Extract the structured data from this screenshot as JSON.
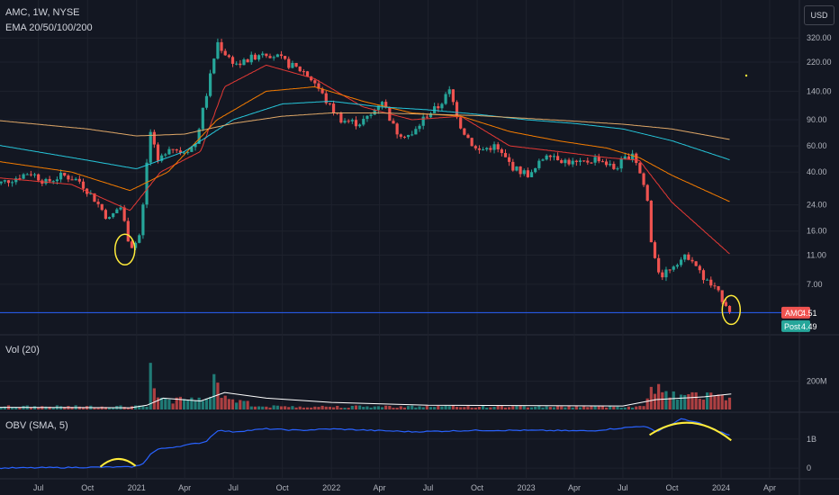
{
  "header": {
    "symbol": "AMC, 1W, NYSE",
    "indicator": "EMA 20/50/100/200",
    "currency": "USD"
  },
  "colors": {
    "background": "#131722",
    "grid": "#1e222d",
    "up": "#26a69a",
    "down": "#ef5350",
    "ema20": "#e53935",
    "ema50": "#f57c00",
    "ema100": "#26c6da",
    "ema200": "#e0a868",
    "vol_ma": "#ffffff",
    "obv": "#2962ff",
    "highlight": "#ffeb3b",
    "hline": "#2962ff"
  },
  "price_tags": [
    {
      "label": "AMC",
      "value": "4.51",
      "color": "#ef5350"
    },
    {
      "label": "Post",
      "value": "4.49",
      "color": "#26a69a"
    }
  ],
  "panes": {
    "volume_title": "Vol (20)",
    "obv_title": "OBV (SMA, 5)"
  },
  "chart_data": [
    {
      "type": "candlestick",
      "title": "AMC, 1W, NYSE",
      "scale": "log",
      "ylim": [
        5.0,
        330
      ],
      "y_ticks": [
        "320.00",
        "220.00",
        "140.00",
        "90.00",
        "60.00",
        "40.00",
        "24.00",
        "16.00",
        "11.00",
        "7.00"
      ],
      "y_tick_values": [
        320,
        220,
        140,
        90,
        60,
        40,
        24,
        16,
        11,
        7
      ],
      "x_ticks": [
        "Jul",
        "Oct",
        "2021",
        "Apr",
        "Jul",
        "Oct",
        "2022",
        "Apr",
        "Jul",
        "Oct",
        "2023",
        "Apr",
        "Jul",
        "Oct",
        "2024",
        "Apr"
      ],
      "x_tick_dates": [
        "2020-07-01",
        "2020-10-01",
        "2021-01-01",
        "2021-04-01",
        "2021-07-01",
        "2021-10-01",
        "2022-01-01",
        "2022-04-01",
        "2022-07-01",
        "2022-10-01",
        "2023-01-01",
        "2023-04-01",
        "2023-07-01",
        "2023-10-01",
        "2024-01-01",
        "2024-04-01"
      ],
      "close_path": [
        [
          "2020-04-01",
          32
        ],
        [
          "2020-05-15",
          36
        ],
        [
          "2020-06-15",
          40
        ],
        [
          "2020-07-15",
          34
        ],
        [
          "2020-08-15",
          38
        ],
        [
          "2020-09-15",
          35
        ],
        [
          "2020-10-15",
          26
        ],
        [
          "2020-11-10",
          19
        ],
        [
          "2020-12-01",
          24
        ],
        [
          "2020-12-20",
          12.5
        ],
        [
          "2021-01-05",
          14
        ],
        [
          "2021-01-15",
          27
        ],
        [
          "2021-01-25",
          80
        ],
        [
          "2021-02-10",
          45
        ],
        [
          "2021-03-01",
          60
        ],
        [
          "2021-03-25",
          55
        ],
        [
          "2021-04-20",
          60
        ],
        [
          "2021-05-15",
          150
        ],
        [
          "2021-06-01",
          300
        ],
        [
          "2021-06-20",
          240
        ],
        [
          "2021-07-10",
          210
        ],
        [
          "2021-08-01",
          230
        ],
        [
          "2021-08-25",
          260
        ],
        [
          "2021-09-20",
          240
        ],
        [
          "2021-10-15",
          210
        ],
        [
          "2021-11-10",
          190
        ],
        [
          "2021-12-01",
          160
        ],
        [
          "2021-12-25",
          115
        ],
        [
          "2022-01-20",
          90
        ],
        [
          "2022-02-20",
          85
        ],
        [
          "2022-03-15",
          95
        ],
        [
          "2022-04-05",
          125
        ],
        [
          "2022-05-01",
          75
        ],
        [
          "2022-06-01",
          70
        ],
        [
          "2022-06-25",
          95
        ],
        [
          "2022-07-20",
          110
        ],
        [
          "2022-08-10",
          140
        ],
        [
          "2022-09-01",
          80
        ],
        [
          "2022-10-01",
          55
        ],
        [
          "2022-11-01",
          60
        ],
        [
          "2022-12-10",
          42
        ],
        [
          "2023-01-10",
          38
        ],
        [
          "2023-02-10",
          55
        ],
        [
          "2023-03-10",
          48
        ],
        [
          "2023-04-10",
          45
        ],
        [
          "2023-05-15",
          50
        ],
        [
          "2023-06-15",
          42
        ],
        [
          "2023-07-20",
          55
        ],
        [
          "2023-08-15",
          28
        ],
        [
          "2023-08-25",
          11
        ],
        [
          "2023-09-10",
          8
        ],
        [
          "2023-10-10",
          10
        ],
        [
          "2023-11-05",
          11
        ],
        [
          "2023-11-25",
          8
        ],
        [
          "2023-12-20",
          6.5
        ],
        [
          "2024-01-10",
          5.2
        ],
        [
          "2024-01-20",
          4.51
        ]
      ],
      "series": [
        {
          "name": "EMA 20",
          "points": [
            [
              "2020-04-01",
              37
            ],
            [
              "2020-09-01",
              33
            ],
            [
              "2020-12-20",
              22
            ],
            [
              "2021-02-15",
              40
            ],
            [
              "2021-05-01",
              55
            ],
            [
              "2021-06-15",
              150
            ],
            [
              "2021-09-01",
              210
            ],
            [
              "2021-12-01",
              170
            ],
            [
              "2022-03-01",
              110
            ],
            [
              "2022-06-01",
              90
            ],
            [
              "2022-09-01",
              95
            ],
            [
              "2022-12-01",
              60
            ],
            [
              "2023-03-01",
              55
            ],
            [
              "2023-06-01",
              50
            ],
            [
              "2023-08-01",
              48
            ],
            [
              "2023-10-01",
              25
            ],
            [
              "2024-01-20",
              11
            ]
          ]
        },
        {
          "name": "EMA 50",
          "points": [
            [
              "2020-04-01",
              48
            ],
            [
              "2020-09-01",
              40
            ],
            [
              "2020-12-20",
              30
            ],
            [
              "2021-03-01",
              40
            ],
            [
              "2021-06-01",
              90
            ],
            [
              "2021-09-01",
              140
            ],
            [
              "2021-12-01",
              150
            ],
            [
              "2022-03-01",
              120
            ],
            [
              "2022-06-01",
              100
            ],
            [
              "2022-09-01",
              95
            ],
            [
              "2022-12-01",
              75
            ],
            [
              "2023-03-01",
              65
            ],
            [
              "2023-06-01",
              58
            ],
            [
              "2023-08-01",
              50
            ],
            [
              "2023-10-01",
              38
            ],
            [
              "2024-01-20",
              25
            ]
          ]
        },
        {
          "name": "EMA 100",
          "points": [
            [
              "2020-04-01",
              62
            ],
            [
              "2020-10-01",
              48
            ],
            [
              "2021-01-01",
              42
            ],
            [
              "2021-04-01",
              55
            ],
            [
              "2021-07-01",
              90
            ],
            [
              "2021-10-01",
              115
            ],
            [
              "2022-01-01",
              120
            ],
            [
              "2022-04-01",
              110
            ],
            [
              "2022-07-01",
              105
            ],
            [
              "2022-10-01",
              98
            ],
            [
              "2023-01-01",
              90
            ],
            [
              "2023-04-01",
              85
            ],
            [
              "2023-07-01",
              78
            ],
            [
              "2023-10-01",
              65
            ],
            [
              "2024-01-20",
              48
            ]
          ]
        },
        {
          "name": "EMA 200",
          "points": [
            [
              "2020-04-01",
              90
            ],
            [
              "2020-10-01",
              78
            ],
            [
              "2021-01-01",
              70
            ],
            [
              "2021-04-01",
              72
            ],
            [
              "2021-07-01",
              85
            ],
            [
              "2021-10-01",
              95
            ],
            [
              "2022-01-01",
              100
            ],
            [
              "2022-04-01",
              100
            ],
            [
              "2022-07-01",
              98
            ],
            [
              "2022-10-01",
              96
            ],
            [
              "2023-01-01",
              92
            ],
            [
              "2023-04-01",
              88
            ],
            [
              "2023-07-01",
              84
            ],
            [
              "2023-10-01",
              78
            ],
            [
              "2024-01-20",
              66
            ]
          ]
        }
      ],
      "last_price": 4.51,
      "post_price": 4.49
    },
    {
      "type": "bar",
      "title": "Vol (20)",
      "y_ticks": [
        "200M"
      ],
      "y_tick_values": [
        200000000
      ],
      "ylim": [
        0,
        350000000
      ],
      "spikes": [
        [
          "2021-01-28",
          330000000,
          "up"
        ],
        [
          "2021-02-04",
          150000000,
          "down"
        ],
        [
          "2021-05-27",
          250000000,
          "up"
        ],
        [
          "2021-06-03",
          190000000,
          "down"
        ],
        [
          "2023-08-24",
          160000000,
          "down"
        ],
        [
          "2023-09-07",
          180000000,
          "down"
        ],
        [
          "2023-09-21",
          130000000,
          "up"
        ]
      ],
      "ma_points": [
        [
          "2020-04-01",
          15000000
        ],
        [
          "2020-12-20",
          12000000
        ],
        [
          "2021-01-20",
          30000000
        ],
        [
          "2021-02-20",
          80000000
        ],
        [
          "2021-05-01",
          60000000
        ],
        [
          "2021-06-15",
          120000000
        ],
        [
          "2021-09-01",
          80000000
        ],
        [
          "2022-01-01",
          50000000
        ],
        [
          "2022-07-01",
          30000000
        ],
        [
          "2023-07-01",
          25000000
        ],
        [
          "2023-09-01",
          70000000
        ],
        [
          "2023-12-01",
          90000000
        ],
        [
          "2024-01-20",
          110000000
        ]
      ]
    },
    {
      "type": "line",
      "title": "OBV (SMA, 5)",
      "y_ticks": [
        "1B",
        "0"
      ],
      "y_tick_values": [
        1000000000,
        0
      ],
      "ylim": [
        -150000000,
        1800000000
      ],
      "points": [
        [
          "2020-04-01",
          0
        ],
        [
          "2020-12-20",
          40000000
        ],
        [
          "2021-01-10",
          100000000
        ],
        [
          "2021-01-28",
          500000000
        ],
        [
          "2021-02-10",
          650000000
        ],
        [
          "2021-03-20",
          750000000
        ],
        [
          "2021-05-10",
          900000000
        ],
        [
          "2021-06-01",
          1300000000
        ],
        [
          "2021-07-01",
          1250000000
        ],
        [
          "2021-09-01",
          1350000000
        ],
        [
          "2021-11-01",
          1300000000
        ],
        [
          "2022-01-01",
          1350000000
        ],
        [
          "2022-06-01",
          1250000000
        ],
        [
          "2022-10-01",
          1300000000
        ],
        [
          "2023-01-01",
          1300000000
        ],
        [
          "2023-05-01",
          1280000000
        ],
        [
          "2023-08-10",
          1450000000
        ],
        [
          "2023-09-01",
          1250000000
        ],
        [
          "2023-10-20",
          1700000000
        ],
        [
          "2023-11-20",
          1550000000
        ],
        [
          "2024-01-20",
          1100000000
        ]
      ]
    }
  ]
}
